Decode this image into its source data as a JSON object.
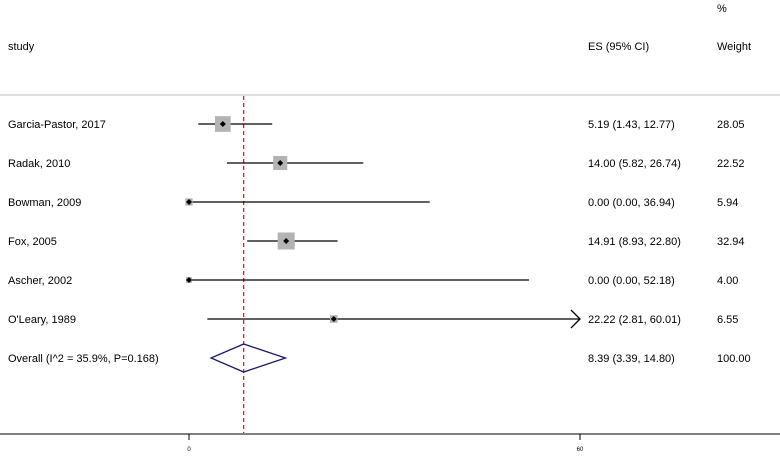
{
  "chart_data": {
    "type": "forest",
    "headers": {
      "study": "study",
      "es": "ES (95% CI)",
      "weight_top": "%",
      "weight": "Weight"
    },
    "xlim": [
      0,
      60
    ],
    "xticks": [
      {
        "value": 0,
        "label": "0"
      },
      {
        "value": 60,
        "label": "60"
      }
    ],
    "reference_line": 8.39,
    "studies": [
      {
        "label": "Garcia-Pastor, 2017",
        "es": 5.19,
        "lo": 1.43,
        "hi": 12.77,
        "ci_text": "5.19 (1.43, 12.77)",
        "weight": 28.05,
        "weight_text": "28.05"
      },
      {
        "label": "Radak, 2010",
        "es": 14.0,
        "lo": 5.82,
        "hi": 26.74,
        "ci_text": "14.00 (5.82, 26.74)",
        "weight": 22.52,
        "weight_text": "22.52"
      },
      {
        "label": "Bowman, 2009",
        "es": 0.0,
        "lo": 0.0,
        "hi": 36.94,
        "ci_text": "0.00 (0.00, 36.94)",
        "weight": 5.94,
        "weight_text": "5.94"
      },
      {
        "label": "Fox, 2005",
        "es": 14.91,
        "lo": 8.93,
        "hi": 22.8,
        "ci_text": "14.91 (8.93, 22.80)",
        "weight": 32.94,
        "weight_text": "32.94"
      },
      {
        "label": "Ascher, 2002",
        "es": 0.0,
        "lo": 0.0,
        "hi": 52.18,
        "ci_text": "0.00 (0.00, 52.18)",
        "weight": 4.0,
        "weight_text": "4.00"
      },
      {
        "label": "O'Leary, 1989",
        "es": 22.22,
        "lo": 2.81,
        "hi": 60.01,
        "ci_text": "22.22 (2.81, 60.01)",
        "weight": 6.55,
        "weight_text": "6.55"
      }
    ],
    "overall": {
      "label": "Overall  (I^2 = 35.9%, P=0.168)",
      "es": 8.39,
      "lo": 3.39,
      "hi": 14.8,
      "ci_text": "8.39 (3.39, 14.80)",
      "weight_text": "100.00"
    },
    "colors": {
      "box": "#b3b3b3",
      "ci_line": "#000000",
      "diamond": "#1a1a6e",
      "reference": "#b22222",
      "rule": "#bfbfbf",
      "axis": "#000000"
    }
  }
}
